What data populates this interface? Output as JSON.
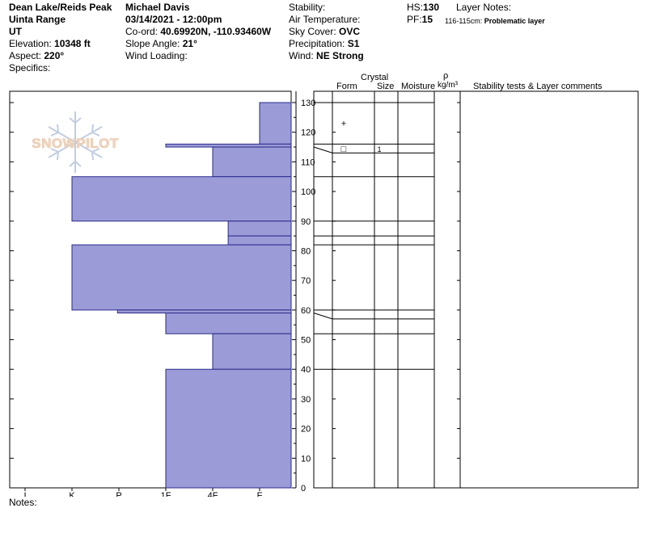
{
  "header": {
    "col1": {
      "location": "Dean Lake/Reids Peak",
      "range": "Uinta Range",
      "state": "UT",
      "elevation_label": "Elevation:",
      "elevation_value": "10348 ft",
      "aspect_label": "Aspect:",
      "aspect_value": "220°",
      "specifics_label": "Specifics:"
    },
    "col2": {
      "observer": "Michael Davis",
      "datetime": "03/14/2021 - 12:00pm",
      "coord_label": "Co-ord:",
      "coord_value": "40.69920N, -110.93460W",
      "slope_label": "Slope Angle:",
      "slope_value": "21°",
      "wind_loading_label": "Wind Loading:"
    },
    "col3": {
      "stability_label": "Stability:",
      "air_temp_label": "Air Temperature:",
      "sky_label": "Sky Cover:",
      "sky_value": "OVC",
      "precip_label": "Precipitation:",
      "precip_value": "S1",
      "wind_label": "Wind:",
      "wind_value": "NE Strong"
    },
    "col4": {
      "hs_label": "HS:",
      "hs_value": "130",
      "pf_label": "PF:",
      "pf_value": "15"
    },
    "col5": {
      "layer_notes_label": "Layer Notes:",
      "note_range": "116-115cm:",
      "note_text": "Problematic layer"
    }
  },
  "columns": {
    "form": "Form",
    "crystal": "Crystal",
    "size": "Size",
    "moisture": "Moisture",
    "rho": "ρ",
    "density_unit": "kg/m³",
    "comments": "Stability tests & Layer comments"
  },
  "logo_text": "SNOWPILOT",
  "notes_label": "Notes:",
  "chart_data": {
    "type": "bar",
    "orientation": "horizontal-step",
    "x_axis": {
      "ticks": [
        "I",
        "K",
        "P",
        "1F",
        "4F",
        "F"
      ],
      "reversed": true
    },
    "y_axis": {
      "ylim": [
        0,
        130
      ],
      "ticks": [
        0,
        10,
        20,
        30,
        40,
        50,
        60,
        70,
        80,
        90,
        100,
        110,
        120,
        130
      ]
    },
    "bar_color": "#9b9bd7",
    "hardness_layers": [
      {
        "top": 130,
        "bottom": 116,
        "hardness": "F"
      },
      {
        "top": 116,
        "bottom": 115,
        "hardness": "1F"
      },
      {
        "top": 115,
        "bottom": 105,
        "hardness": "4F"
      },
      {
        "top": 105,
        "bottom": 90,
        "hardness": "K"
      },
      {
        "top": 90,
        "bottom": 85,
        "hardness": "4F-"
      },
      {
        "top": 85,
        "bottom": 82,
        "hardness": "4F-"
      },
      {
        "top": 82,
        "bottom": 60,
        "hardness": "K"
      },
      {
        "top": 60,
        "bottom": 59,
        "hardness": "P-"
      },
      {
        "top": 59,
        "bottom": 52,
        "hardness": "1F"
      },
      {
        "top": 52,
        "bottom": 40,
        "hardness": "4F"
      },
      {
        "top": 40,
        "bottom": 0,
        "hardness": "1F"
      }
    ],
    "hardness_scale": {
      "I": 0,
      "K": 1,
      "P": 2,
      "1F": 3,
      "4F": 4,
      "F": 5,
      "4F-": 4.33,
      "P-": 1.97
    },
    "layer_boundaries": [
      130,
      116,
      115,
      105,
      90,
      85,
      82,
      60,
      59,
      52,
      40,
      0
    ],
    "grain_markers": [
      {
        "depth": 124,
        "form": "+",
        "size": ""
      },
      {
        "depth": 115.5,
        "form": "□",
        "size": "1"
      }
    ]
  }
}
